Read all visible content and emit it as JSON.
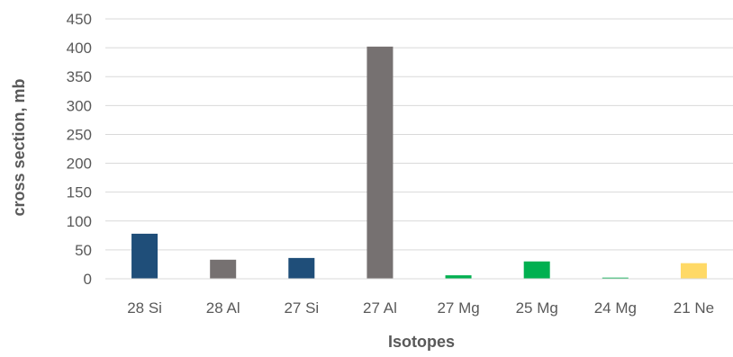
{
  "chart_data": {
    "type": "bar",
    "title": "",
    "xlabel": "Isotopes",
    "ylabel": "cross section, mb",
    "ylim": [
      0,
      450
    ],
    "yticks": [
      0,
      50,
      100,
      150,
      200,
      250,
      300,
      350,
      400,
      450
    ],
    "grid": true,
    "legend": "none",
    "categories": [
      "28 Si",
      "28 Al",
      "27 Si",
      "27 Al",
      "27 Mg",
      "25 Mg",
      "24 Mg",
      "21 Ne"
    ],
    "values": [
      78,
      33,
      36,
      402,
      6,
      30,
      2,
      27
    ],
    "bar_colors": [
      "#1f4e79",
      "#767171",
      "#1f4e79",
      "#767171",
      "#00b050",
      "#00b050",
      "#00b050",
      "#ffd966"
    ]
  },
  "colors": {
    "gridline": "#d9d9d9",
    "axis_line": "#d9d9d9",
    "text": "#595959"
  }
}
